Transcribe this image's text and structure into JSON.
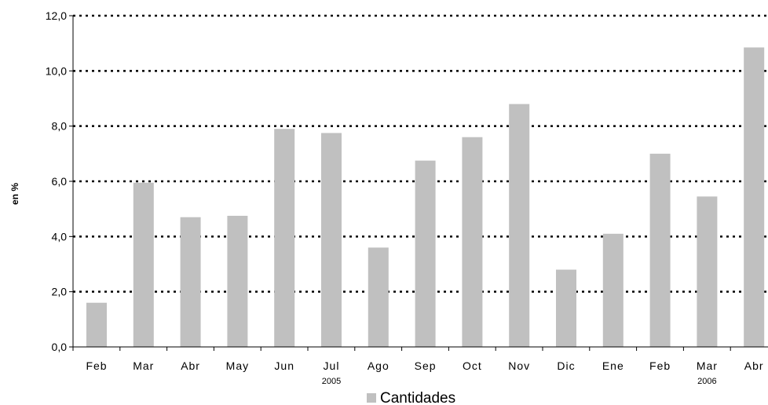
{
  "chart_data": {
    "type": "bar",
    "ylabel": "en %",
    "ylim": [
      0,
      12
    ],
    "yticks": [
      "0,0",
      "2,0",
      "4,0",
      "6,0",
      "8,0",
      "10,0",
      "12,0"
    ],
    "grid": "horizontal dotted",
    "categories": [
      "Feb",
      "Mar",
      "Abr",
      "May",
      "Jun",
      "Jul",
      "Ago",
      "Sep",
      "Oct",
      "Nov",
      "Dic",
      "Ene",
      "Feb",
      "Mar",
      "Abr"
    ],
    "year_labels": [
      {
        "label": "2005",
        "category_index": 5
      },
      {
        "label": "2006",
        "category_index": 13
      }
    ],
    "series": [
      {
        "name": "Cantidades",
        "color": "#c0c0c0",
        "values": [
          1.6,
          5.95,
          4.7,
          4.75,
          7.9,
          7.75,
          3.6,
          6.75,
          7.6,
          8.8,
          2.8,
          4.1,
          7.0,
          5.45,
          10.85
        ]
      }
    ],
    "legend": "bottom-center"
  }
}
